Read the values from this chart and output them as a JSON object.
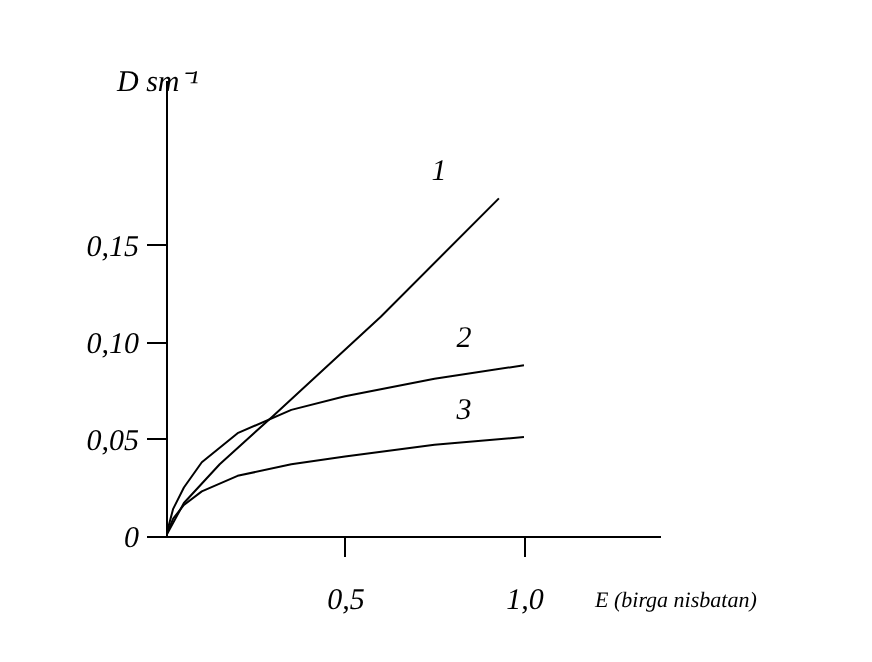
{
  "chart_data": {
    "type": "line",
    "xlabel": "E (birga nisbatan)",
    "ylabel": "D sm⁻¹",
    "xlim": [
      0,
      1.38
    ],
    "ylim": [
      0,
      0.235
    ],
    "xticks": [
      {
        "value": 0.5,
        "label": "0,5"
      },
      {
        "value": 1.0,
        "label": "1,0"
      }
    ],
    "yticks": [
      {
        "value": 0,
        "label": "0"
      },
      {
        "value": 0.05,
        "label": "0,05"
      },
      {
        "value": 0.1,
        "label": "0,10"
      },
      {
        "value": 0.15,
        "label": "0,15"
      }
    ],
    "grid": false,
    "legend": false,
    "marker": "none",
    "line_style": "solid",
    "series": [
      {
        "name": "1",
        "color": "#000000",
        "x": [
          0,
          0.05,
          0.15,
          0.3,
          0.6,
          0.93
        ],
        "values": [
          0,
          0.017,
          0.037,
          0.062,
          0.113,
          0.174
        ]
      },
      {
        "name": "2",
        "color": "#000000",
        "x": [
          0,
          0.02,
          0.05,
          0.1,
          0.2,
          0.35,
          0.5,
          0.75,
          1.0
        ],
        "values": [
          0,
          0.014,
          0.025,
          0.038,
          0.053,
          0.065,
          0.072,
          0.081,
          0.088
        ]
      },
      {
        "name": "3",
        "color": "#000000",
        "x": [
          0,
          0.02,
          0.05,
          0.1,
          0.2,
          0.35,
          0.5,
          0.75,
          1.0
        ],
        "values": [
          0,
          0.009,
          0.016,
          0.023,
          0.031,
          0.037,
          0.041,
          0.047,
          0.051
        ]
      }
    ]
  }
}
